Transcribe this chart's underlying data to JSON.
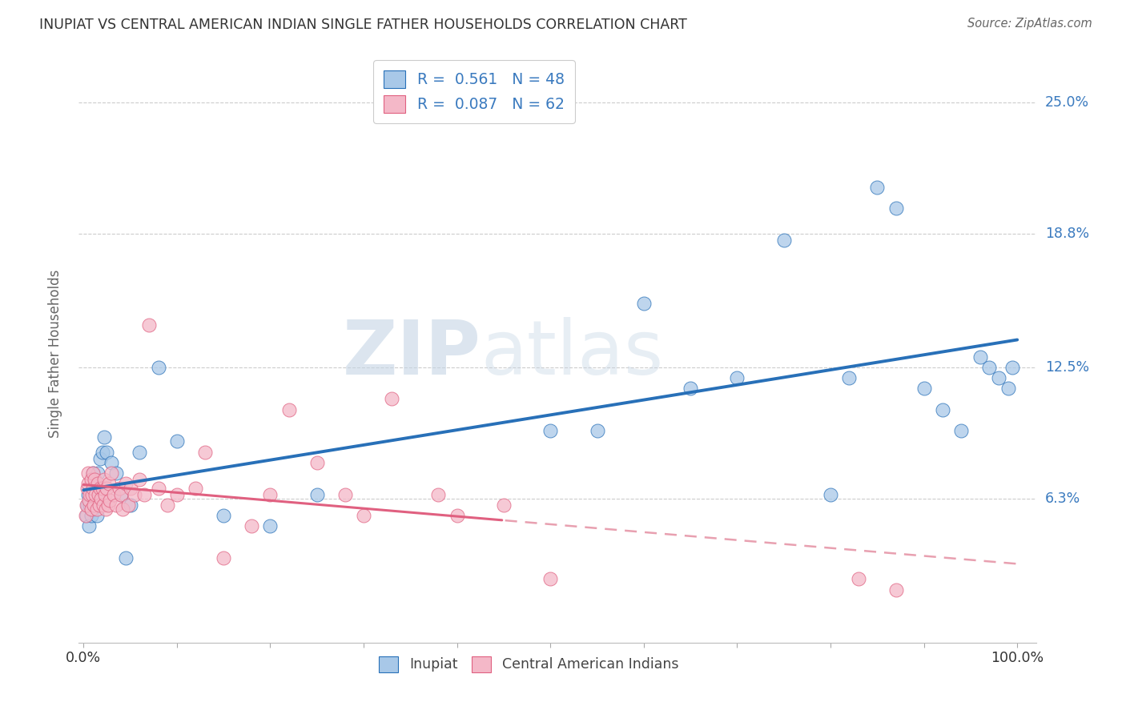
{
  "title": "INUPIAT VS CENTRAL AMERICAN INDIAN SINGLE FATHER HOUSEHOLDS CORRELATION CHART",
  "source": "Source: ZipAtlas.com",
  "ylabel": "Single Father Households",
  "ytick_labels": [
    "6.3%",
    "12.5%",
    "18.8%",
    "25.0%"
  ],
  "ytick_values": [
    0.063,
    0.125,
    0.188,
    0.25
  ],
  "watermark_zip": "ZIP",
  "watermark_atlas": "atlas",
  "blue_color": "#a8c8e8",
  "pink_color": "#f4b8c8",
  "blue_line_color": "#2870b8",
  "pink_line_color": "#e06080",
  "pink_dash_color": "#e8a0b0",
  "text_color": "#3a7abf",
  "inupiat_x": [
    0.003,
    0.004,
    0.005,
    0.006,
    0.007,
    0.008,
    0.009,
    0.01,
    0.01,
    0.011,
    0.012,
    0.013,
    0.014,
    0.015,
    0.016,
    0.018,
    0.02,
    0.022,
    0.025,
    0.03,
    0.035,
    0.04,
    0.045,
    0.05,
    0.06,
    0.08,
    0.1,
    0.15,
    0.2,
    0.25,
    0.5,
    0.55,
    0.6,
    0.65,
    0.7,
    0.75,
    0.8,
    0.82,
    0.85,
    0.87,
    0.9,
    0.92,
    0.94,
    0.96,
    0.97,
    0.98,
    0.99,
    0.995
  ],
  "inupiat_y": [
    0.055,
    0.06,
    0.065,
    0.05,
    0.06,
    0.055,
    0.065,
    0.075,
    0.058,
    0.068,
    0.06,
    0.07,
    0.055,
    0.075,
    0.062,
    0.082,
    0.085,
    0.092,
    0.085,
    0.08,
    0.075,
    0.065,
    0.035,
    0.06,
    0.085,
    0.125,
    0.09,
    0.055,
    0.05,
    0.065,
    0.095,
    0.095,
    0.155,
    0.115,
    0.12,
    0.185,
    0.065,
    0.12,
    0.21,
    0.2,
    0.115,
    0.105,
    0.095,
    0.13,
    0.125,
    0.12,
    0.115,
    0.125
  ],
  "cai_x": [
    0.002,
    0.003,
    0.004,
    0.005,
    0.005,
    0.006,
    0.007,
    0.008,
    0.008,
    0.009,
    0.01,
    0.01,
    0.011,
    0.012,
    0.013,
    0.014,
    0.015,
    0.016,
    0.017,
    0.018,
    0.019,
    0.02,
    0.021,
    0.022,
    0.023,
    0.024,
    0.025,
    0.026,
    0.027,
    0.028,
    0.03,
    0.032,
    0.035,
    0.038,
    0.04,
    0.042,
    0.045,
    0.048,
    0.05,
    0.055,
    0.06,
    0.065,
    0.07,
    0.08,
    0.09,
    0.1,
    0.12,
    0.13,
    0.15,
    0.18,
    0.2,
    0.22,
    0.25,
    0.28,
    0.3,
    0.33,
    0.38,
    0.4,
    0.45,
    0.5,
    0.83,
    0.87
  ],
  "cai_y": [
    0.055,
    0.06,
    0.068,
    0.07,
    0.075,
    0.062,
    0.065,
    0.058,
    0.072,
    0.065,
    0.068,
    0.075,
    0.06,
    0.072,
    0.065,
    0.058,
    0.07,
    0.065,
    0.06,
    0.068,
    0.063,
    0.068,
    0.06,
    0.072,
    0.065,
    0.058,
    0.068,
    0.06,
    0.07,
    0.062,
    0.075,
    0.065,
    0.06,
    0.068,
    0.065,
    0.058,
    0.07,
    0.06,
    0.068,
    0.065,
    0.072,
    0.065,
    0.145,
    0.068,
    0.06,
    0.065,
    0.068,
    0.085,
    0.035,
    0.05,
    0.065,
    0.105,
    0.08,
    0.065,
    0.055,
    0.11,
    0.065,
    0.055,
    0.06,
    0.025,
    0.025,
    0.02
  ],
  "inupiat_r": 0.561,
  "inupiat_n": 48,
  "cai_r": 0.087,
  "cai_n": 62
}
